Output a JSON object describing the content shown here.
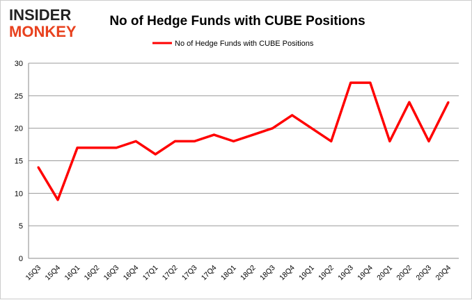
{
  "logo": {
    "line1": "INSIDER",
    "line2": "MONKEY"
  },
  "chart_data": {
    "type": "line",
    "title": "No of Hedge Funds with CUBE Positions",
    "categories": [
      "15Q3",
      "15Q4",
      "16Q1",
      "16Q2",
      "16Q3",
      "16Q4",
      "17Q1",
      "17Q2",
      "17Q3",
      "17Q4",
      "18Q1",
      "18Q2",
      "18Q3",
      "18Q4",
      "19Q1",
      "19Q2",
      "19Q3",
      "19Q4",
      "20Q1",
      "20Q2",
      "20Q3",
      "20Q4"
    ],
    "series": [
      {
        "name": "No of Hedge Funds with CUBE Positions",
        "color": "#ff0000",
        "values": [
          14,
          9,
          17,
          17,
          17,
          18,
          16,
          18,
          18,
          19,
          18,
          19,
          20,
          22,
          20,
          18,
          27,
          27,
          18,
          24,
          18,
          24
        ]
      }
    ],
    "ylim": [
      0,
      30
    ],
    "yticks": [
      0,
      5,
      10,
      15,
      20,
      25,
      30
    ],
    "grid": true,
    "legend": "top-center",
    "xlabel": "",
    "ylabel": ""
  }
}
